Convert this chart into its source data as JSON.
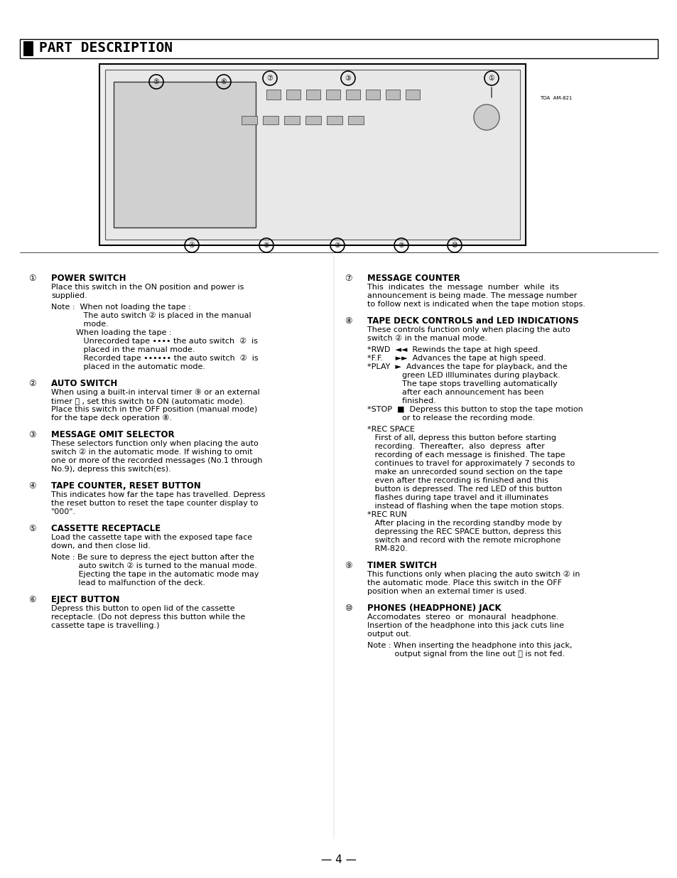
{
  "title": "PART DESCRIPTION",
  "bg_color": "#ffffff",
  "text_color": "#000000",
  "page_number": "4",
  "left_column": [
    {
      "num": "①",
      "heading": "POWER SWITCH",
      "paragraphs": [
        "Place this switch in the ON position and power is\nsupplied.",
        "Note :  When not loading the tape :\n             The auto switch ② is placed in the manual\n             mode.\n          When loading the tape :\n             Unrecorded tape •••• the auto switch  ②  is\n             placed in the manual mode.\n             Recorded tape •••••• the auto switch  ②  is\n             placed in the automatic mode."
      ]
    },
    {
      "num": "②",
      "heading": "AUTO SWITCH",
      "paragraphs": [
        "When using a built-in interval timer ⑨ or an external\ntimer ⑮ , set this switch to ON (automatic mode).\nPlace this switch in the OFF position (manual mode)\nfor the tape deck operation ⑧."
      ]
    },
    {
      "num": "③",
      "heading": "MESSAGE OMIT SELECTOR",
      "paragraphs": [
        "These selectors function only when placing the auto\nswitch ② in the automatic mode. If wishing to omit\none or more of the recorded messages (No.1 through\nNo.9), depress this switch(es)."
      ]
    },
    {
      "num": "④",
      "heading": "TAPE COUNTER, RESET BUTTON",
      "paragraphs": [
        "This indicates how far the tape has travelled. Depress\nthe reset button to reset the tape counter display to\n\"000\"."
      ]
    },
    {
      "num": "⑤",
      "heading": "CASSETTE RECEPTACLE",
      "paragraphs": [
        "Load the cassette tape with the exposed tape face\ndown, and then close lid.",
        "Note : Be sure to depress the eject button after the\n           auto switch ② is turned to the manual mode.\n           Ejecting the tape in the automatic mode may\n           lead to malfunction of the deck."
      ]
    },
    {
      "num": "⑥",
      "heading": "EJECT BUTTON",
      "paragraphs": [
        "Depress this button to open lid of the cassette\nreceptacle. (Do not depress this button while the\ncassette tape is travelling.)"
      ]
    }
  ],
  "right_column": [
    {
      "num": "⑦",
      "heading": "MESSAGE COUNTER",
      "paragraphs": [
        "This  indicates  the  message  number  while  its\nannouncement is being made. The message number\nto follow next is indicated when the tape motion stops."
      ]
    },
    {
      "num": "⑧",
      "heading": "TAPE DECK CONTROLS and LED INDICATIONS",
      "paragraphs": [
        "These controls function only when placing the auto\nswitch ② in the manual mode.",
        "*RWD  ◄◄  Rewinds the tape at high speed.\n*F.F.     ►►  Advances the tape at high speed.\n*PLAY  ►  Advances the tape for playback, and the\n              green LED illluminates during playback.\n              The tape stops travelling automatically\n              after each announcement has been\n              finished.\n*STOP  ■  Depress this button to stop the tape motion\n              or to release the recording mode.",
        "*REC SPACE\n   First of all, depress this button before starting\n   recording.  Thereafter,  also  depress  after\n   recording of each message is finished. The tape\n   continues to travel for approximately 7 seconds to\n   make an unrecorded sound section on the tape\n   even after the recording is finished and this\n   button is depressed. The red LED of this button\n   flashes during tape travel and it illuminates\n   instead of flashing when the tape motion stops.\n*REC RUN\n   After placing in the recording standby mode by\n   depressing the REC SPACE button, depress this\n   switch and record with the remote microphone\n   RM-820."
      ]
    },
    {
      "num": "⑨",
      "heading": "TIMER SWITCH",
      "paragraphs": [
        "This functions only when placing the auto switch ② in\nthe automatic mode. Place this switch in the OFF\nposition when an external timer is used."
      ]
    },
    {
      "num": "⑩",
      "heading": "PHONES (HEADPHONE) JACK",
      "paragraphs": [
        "Accomodates  stereo  or  monaural  headphone.\nInsertion of the headphone into this jack cuts line\noutput out.",
        "Note : When inserting the headphone into this jack,\n           output signal from the line out ⑬ is not fed."
      ]
    }
  ]
}
